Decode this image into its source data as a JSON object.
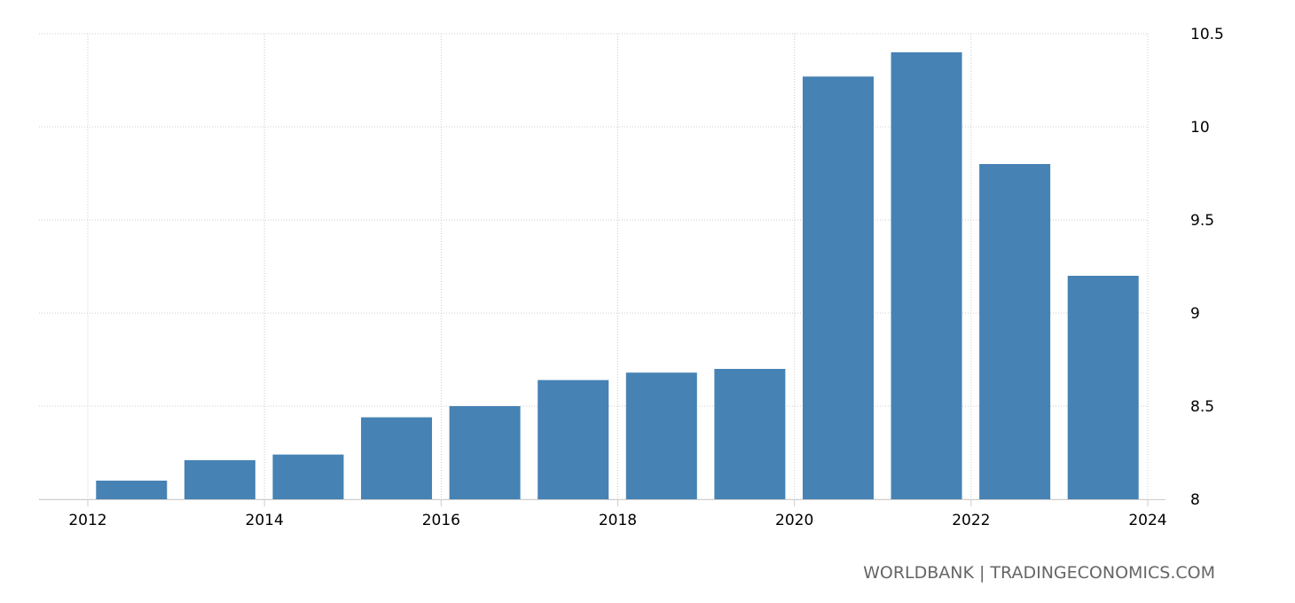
{
  "chart_data": {
    "type": "bar",
    "categories": [
      "2012",
      "2013",
      "2014",
      "2015",
      "2016",
      "2017",
      "2018",
      "2019",
      "2020",
      "2021",
      "2022",
      "2023"
    ],
    "series": [
      {
        "values": [
          8.1,
          8.21,
          8.24,
          8.44,
          8.5,
          8.64,
          8.68,
          8.7,
          10.27,
          10.4,
          9.8,
          9.2
        ]
      }
    ],
    "title": "",
    "xlabel": "",
    "ylabel": "",
    "ylim": [
      8,
      10.5
    ],
    "yticks": [
      "8",
      "8.5",
      "9",
      "9.5",
      "10",
      "10.5"
    ],
    "xticks": [
      "2012",
      "2014",
      "2016",
      "2018",
      "2020",
      "2022",
      "2024"
    ],
    "x_axis_years": [
      2012,
      2014,
      2016,
      2018,
      2020,
      2022,
      2024
    ],
    "y_axis_position": "right",
    "grid": true,
    "bar_color": "#4682b4",
    "grid_color": "#cccccc"
  },
  "source_text": "WORLDBANK | TRADINGECONOMICS.COM"
}
